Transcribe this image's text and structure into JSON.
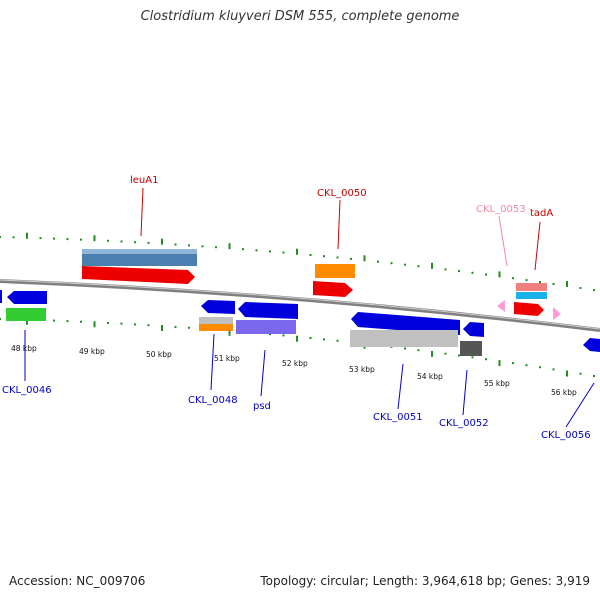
{
  "title": "Clostridium kluyveri DSM 555, complete genome",
  "footer": {
    "accession": "Accession: NC_009706",
    "topology": "Topology: circular; Length: 3,964,618 bp; Genes: 3,919"
  },
  "scale_labels": [
    "48 kbp",
    "49 kbp",
    "50 kbp",
    "51 kbp",
    "52 kbp",
    "53 kbp",
    "54 kbp",
    "55 kbp",
    "56 kbp"
  ],
  "gene_labels": {
    "top": [
      {
        "name": "leuA1",
        "color": "#cc0000"
      },
      {
        "name": "CKL_0050",
        "color": "#cc0000"
      },
      {
        "name": "CKL_0053",
        "color": "#f08aa0"
      },
      {
        "name": "tadA",
        "color": "#cc0000"
      }
    ],
    "bottom": [
      {
        "name": "CKL_0046",
        "color": "#0000cc"
      },
      {
        "name": "CKL_0048",
        "color": "#0000cc"
      },
      {
        "name": "psd",
        "color": "#0000cc"
      },
      {
        "name": "CKL_0051",
        "color": "#0000cc"
      },
      {
        "name": "CKL_0052",
        "color": "#0000cc"
      },
      {
        "name": "CKL_0056",
        "color": "#0000cc"
      }
    ]
  },
  "colors": {
    "backbone": "#808080",
    "ticks": "#228b22",
    "gene_forward": "#ee0000",
    "gene_reverse": "#0000dd",
    "gene_bar_steel": "#4a7fb0",
    "gene_orange": "#ff8c00",
    "gene_pink": "#f08080",
    "gene_cyan": "#1ab0e8",
    "gene_green": "#33cc33",
    "gene_silver": "#c0c0c0",
    "gene_purple": "#7b68ee",
    "gene_darkgray": "#555555",
    "gene_pinktri": "#ff9ad5"
  }
}
